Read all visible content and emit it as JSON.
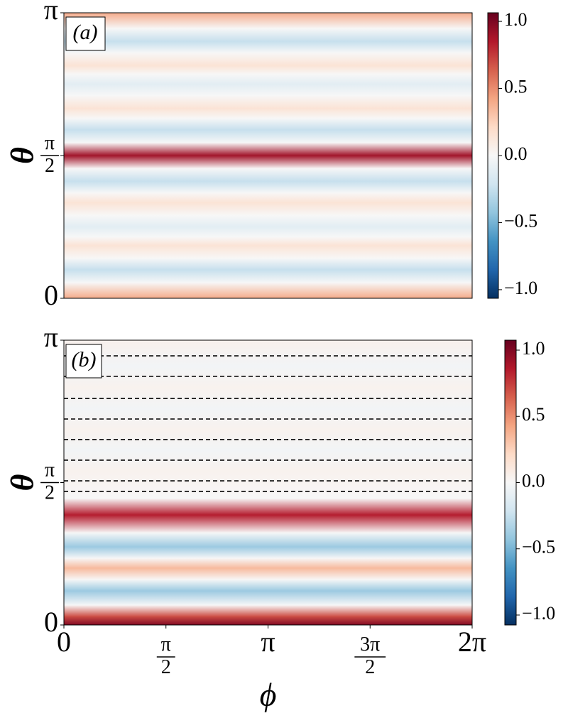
{
  "chart_data": [
    {
      "type": "heatmap",
      "panel_label": "(a)",
      "ylabel": "θ",
      "colormap": "RdBu_r",
      "xlim": [
        0,
        6.2832
      ],
      "ylim": [
        0,
        3.1416
      ],
      "yticks": [
        0,
        {
          "value": 1.5708,
          "label": "π/2"
        },
        {
          "value": 3.1416,
          "label": "π"
        }
      ],
      "y": [
        0,
        0.173,
        0.314,
        0.44,
        0.581,
        0.675,
        0.785,
        0.911,
        1.052,
        1.162,
        1.288,
        1.429,
        1.571,
        1.712,
        1.854,
        1.979,
        2.089,
        2.231,
        2.356,
        2.466,
        2.56,
        2.702,
        2.827,
        2.969,
        3.142
      ],
      "values": [
        0.4,
        0,
        -0.25,
        0,
        0.15,
        0,
        -0.12,
        0,
        0.15,
        0,
        -0.25,
        0,
        0.9,
        0,
        -0.25,
        0,
        0.15,
        0,
        -0.12,
        0,
        0.15,
        0,
        -0.25,
        0,
        0.4
      ],
      "clim": [
        -1.064,
        1.064
      ],
      "cbar_ticks": [
        {
          "value": 1,
          "label": "1.0"
        },
        {
          "value": 0.5,
          "label": "0.5"
        },
        {
          "value": 0,
          "label": "0.0"
        },
        {
          "value": -0.5,
          "label": "−0.5"
        },
        {
          "value": -1,
          "label": "−1.0"
        }
      ]
    },
    {
      "type": "heatmap",
      "panel_label": "(b)",
      "ylabel": "θ",
      "xlabel": "ϕ",
      "colormap": "RdBu_r",
      "xlim": [
        0,
        6.2832
      ],
      "ylim": [
        0,
        3.1416
      ],
      "xticks": [
        0,
        {
          "value": 1.5708,
          "label": "π/2"
        },
        {
          "value": 3.1416,
          "label": "π"
        },
        {
          "value": 4.7124,
          "label": "3π/2"
        },
        {
          "value": 6.2832,
          "label": "2π"
        }
      ],
      "yticks": [
        0,
        {
          "value": 1.5708,
          "label": "π/2"
        },
        {
          "value": 3.1416,
          "label": "π"
        }
      ],
      "y": [
        0,
        0.094,
        0.219,
        0.376,
        0.501,
        0.627,
        0.736,
        0.862,
        1.018,
        1.214,
        1.395,
        1.528,
        1.7,
        1.927,
        2.154,
        2.382,
        2.617,
        2.852,
        3.142
      ],
      "values": [
        1.0,
        0.7,
        0,
        -0.4,
        0,
        0.35,
        0,
        -0.4,
        0,
        0.85,
        0,
        0.02,
        0.04,
        -0.03,
        0.04,
        -0.03,
        0.04,
        -0.03,
        0.05
      ],
      "hlines": [
        2.969,
        2.742,
        2.499,
        2.272,
        2.045,
        1.818,
        1.59,
        1.473
      ],
      "clim": [
        -1.075,
        1.075
      ],
      "cbar_ticks": [
        {
          "value": 1,
          "label": "1.0"
        },
        {
          "value": 0.5,
          "label": "0.5"
        },
        {
          "value": 0,
          "label": "0.0"
        },
        {
          "value": -0.5,
          "label": "−0.5"
        },
        {
          "value": -1,
          "label": "−1.0"
        }
      ]
    }
  ]
}
